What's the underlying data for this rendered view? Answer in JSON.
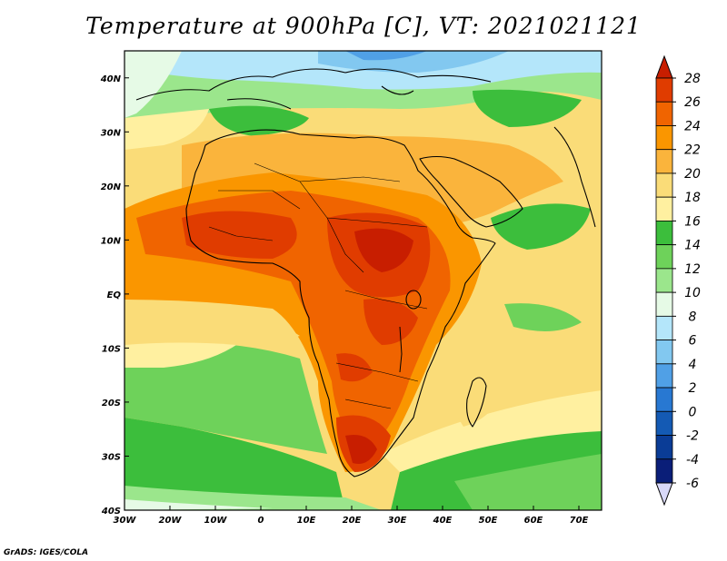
{
  "title": "Temperature at 900hPa [C], VT: 2021021121",
  "footer": "GrADS: IGES/COLA",
  "map": {
    "projection": "latlon",
    "lon_range": [
      -30,
      75
    ],
    "lat_range": [
      -40,
      45
    ],
    "lon_ticks": [
      "30W",
      "20W",
      "10W",
      "0",
      "10E",
      "20E",
      "30E",
      "40E",
      "50E",
      "60E",
      "70E"
    ],
    "lat_ticks": [
      "40S",
      "30S",
      "20S",
      "10S",
      "EQ",
      "10N",
      "20N",
      "30N",
      "40N"
    ]
  },
  "colorbar": {
    "labels": [
      "28",
      "26",
      "24",
      "22",
      "20",
      "18",
      "16",
      "14",
      "12",
      "10",
      "8",
      "6",
      "4",
      "2",
      "0",
      "-2",
      "-4",
      "-6"
    ],
    "colors": [
      "#c81e00",
      "#e03c00",
      "#f06400",
      "#fa9600",
      "#fab43c",
      "#fadc78",
      "#fff0a0",
      "#3cbe3c",
      "#6ed25a",
      "#9be68c",
      "#e6fae6",
      "#b4e6fa",
      "#82c8f0",
      "#50a0e6",
      "#2878d2",
      "#145ab4",
      "#0a3c96",
      "#0a1e78",
      "#d8d8f8"
    ]
  }
}
